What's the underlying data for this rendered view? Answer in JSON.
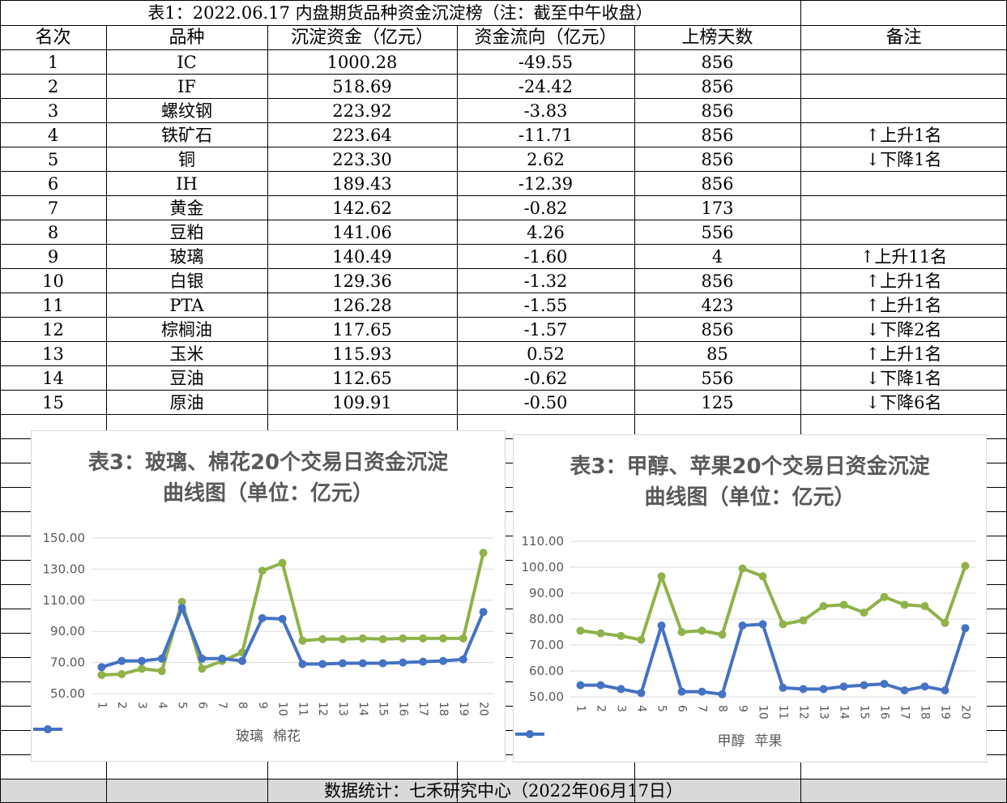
{
  "table": {
    "title": "表1：2022.06.17 内盘期货品种资金沉淀榜（注：截至中午收盘）",
    "headers": [
      "名次",
      "品种",
      "沉淀资金（亿元）",
      "资金流向（亿元）",
      "上榜天数",
      "备注"
    ],
    "rows": [
      [
        "1",
        "IC",
        "1000.28",
        "-49.55",
        "856",
        ""
      ],
      [
        "2",
        "IF",
        "518.69",
        "-24.42",
        "856",
        ""
      ],
      [
        "3",
        "螺纹钢",
        "223.92",
        "-3.83",
        "856",
        ""
      ],
      [
        "4",
        "铁矿石",
        "223.64",
        "-11.71",
        "856",
        "↑上升1名"
      ],
      [
        "5",
        "铜",
        "223.30",
        "2.62",
        "856",
        "↓下降1名"
      ],
      [
        "6",
        "IH",
        "189.43",
        "-12.39",
        "856",
        ""
      ],
      [
        "7",
        "黄金",
        "142.62",
        "-0.82",
        "173",
        ""
      ],
      [
        "8",
        "豆粕",
        "141.06",
        "4.26",
        "556",
        ""
      ],
      [
        "9",
        "玻璃",
        "140.49",
        "-1.60",
        "4",
        "↑上升11名"
      ],
      [
        "10",
        "白银",
        "129.36",
        "-1.32",
        "856",
        "↑上升1名"
      ],
      [
        "11",
        "PTA",
        "126.28",
        "-1.55",
        "423",
        "↑上升1名"
      ],
      [
        "12",
        "棕榈油",
        "117.65",
        "-1.57",
        "856",
        "↓下降2名"
      ],
      [
        "13",
        "玉米",
        "115.93",
        "0.52",
        "85",
        "↑上升1名"
      ],
      [
        "14",
        "豆油",
        "112.65",
        "-0.62",
        "556",
        "↓下降1名"
      ],
      [
        "15",
        "原油",
        "109.91",
        "-0.50",
        "125",
        "↓下降6名"
      ]
    ],
    "footer": "数据统计：七禾研究中心（2022年06月17日）"
  },
  "chart_data": [
    {
      "type": "line",
      "title": "表3：玻璃、棉花20个交易日资金沉淀曲线图（单位：亿元）",
      "x": [
        "1",
        "2",
        "3",
        "4",
        "5",
        "6",
        "7",
        "8",
        "9",
        "10",
        "11",
        "12",
        "13",
        "14",
        "15",
        "16",
        "17",
        "18",
        "19",
        "20"
      ],
      "ylim": [
        50,
        150
      ],
      "yticks": [
        "50.00",
        "70.00",
        "90.00",
        "110.00",
        "130.00",
        "150.00"
      ],
      "series": [
        {
          "name": "玻璃",
          "color": "#8fb249",
          "values": [
            62,
            62.5,
            66,
            64.5,
            109,
            66,
            71,
            76.5,
            129,
            134,
            84,
            85,
            85,
            85.5,
            85,
            85.5,
            85.5,
            85.5,
            85.5,
            140.5
          ]
        },
        {
          "name": "棉花",
          "color": "#4472c4",
          "values": [
            67,
            71,
            71,
            72.5,
            105,
            72.5,
            72.5,
            71,
            98.5,
            98,
            69,
            69,
            69.5,
            69.5,
            69.5,
            70,
            70.5,
            71,
            72,
            102.5
          ]
        }
      ]
    },
    {
      "type": "line",
      "title": "表3：甲醇、苹果20个交易日资金沉淀曲线图（单位：亿元）",
      "x": [
        "1",
        "2",
        "3",
        "4",
        "5",
        "6",
        "7",
        "8",
        "9",
        "10",
        "11",
        "12",
        "13",
        "14",
        "15",
        "16",
        "17",
        "18",
        "19",
        "20"
      ],
      "ylim": [
        50,
        110
      ],
      "yticks": [
        "50.00",
        "60.00",
        "70.00",
        "80.00",
        "90.00",
        "100.00",
        "110.00"
      ],
      "series": [
        {
          "name": "甲醇",
          "color": "#8fb249",
          "values": [
            75.5,
            74.5,
            73.5,
            72,
            96.5,
            75,
            75.5,
            74,
            99.5,
            96.5,
            78,
            79.5,
            85,
            85.5,
            82.5,
            88.5,
            85.5,
            85,
            78.5,
            100.5
          ]
        },
        {
          "name": "苹果",
          "color": "#4472c4",
          "values": [
            54.5,
            54.5,
            53,
            51.5,
            77.5,
            52,
            52,
            51,
            77.5,
            78,
            53.5,
            53,
            53,
            54,
            54.5,
            55,
            52.5,
            54,
            52.5,
            76.5
          ]
        }
      ]
    }
  ]
}
